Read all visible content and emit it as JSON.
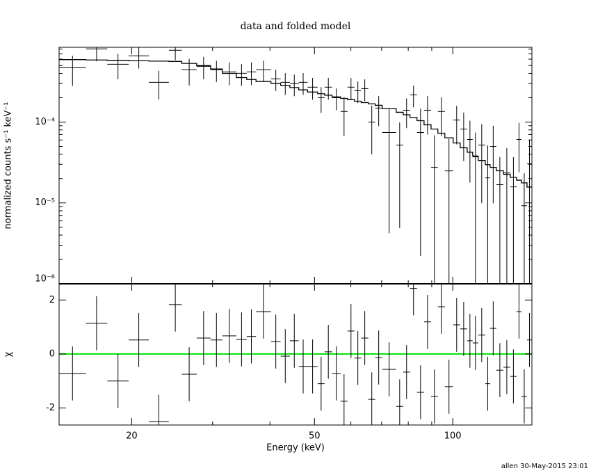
{
  "chart_data": {
    "type": "spectrum",
    "title": "data and folded model",
    "xlabel": "Energy (keV)",
    "xscale": "log",
    "xlim": [
      13.9,
      148.7
    ],
    "xticks": [
      20,
      50,
      100
    ],
    "xminorticks": [
      30,
      40,
      60,
      70,
      80,
      90
    ],
    "bins": [
      13.9,
      15.9,
      17.7,
      19.7,
      21.8,
      24.1,
      25.7,
      27.7,
      29.7,
      31.5,
      33.8,
      35.6,
      37.3,
      40.2,
      42.2,
      44.2,
      46.2,
      48.3,
      50.8,
      52.6,
      54.6,
      57.0,
      59.0,
      61.1,
      63.2,
      65.5,
      67.8,
      70.2,
      75.3,
      78.0,
      80.7,
      83.6,
      86.6,
      89.7,
      92.8,
      96.1,
      100.2,
      103.8,
      107.5,
      110.5,
      113.6,
      117.7,
      120.6,
      124.4,
      128.9,
      133.4,
      137.7,
      141.1,
      145.1,
      148.7
    ],
    "footnote": "allen 30-May-2015 23:01",
    "panels": [
      {
        "ylabel": "normalized counts s⁻¹ keV⁻¹",
        "yscale": "log",
        "ylim": [
          1e-06,
          0.00084
        ],
        "yticks": [
          {
            "value": 1e-06,
            "label": "10⁻⁶"
          },
          {
            "value": 1e-05,
            "label": "10⁻⁵"
          },
          {
            "value": 0.0001,
            "label": "10⁻⁴"
          }
        ],
        "yminorticks": [
          2e-06,
          3e-06,
          4e-06,
          5e-06,
          6e-06,
          7e-06,
          8e-06,
          9e-06,
          2e-05,
          3e-05,
          4e-05,
          5e-05,
          6e-05,
          7e-05,
          8e-05,
          9e-05,
          0.0002,
          0.0003,
          0.0004,
          0.0005,
          0.0006,
          0.0007,
          0.0008
        ],
        "series": [
          {
            "style": "cross",
            "color": "#000000",
            "values": [
              0.00047,
              0.000804,
              0.000519,
              0.000659,
              0.00031,
              0.000773,
              0.000443,
              0.000489,
              0.000443,
              0.000417,
              0.000401,
              0.000417,
              0.000443,
              0.000342,
              0.00031,
              0.000298,
              0.00031,
              0.00027,
              0.0002,
              0.00027,
              0.0002,
              0.000135,
              0.00027,
              0.000244,
              0.000259,
              0.0001,
              0.000149,
              7.42e-05,
              5.19e-05,
              0.00014,
              0.000217,
              7.42e-05,
              0.00014,
              2.75e-05,
              0.000135,
              2.49e-05,
              0.000106,
              8.2e-05,
              6.09e-05,
              3.71e-05,
              5.19e-05,
              2.04e-05,
              4.99e-05,
              1.68e-05,
              2.35e-05,
              1.58e-05,
              6.09e-05,
              9.24e-06,
              3.04e-05
            ],
            "errors": [
              0.00019,
              0.00024,
              0.00018,
              0.0002,
              0.00012,
              0.00019,
              0.00016,
              0.00015,
              0.00013,
              0.00013,
              0.00012,
              0.00013,
              0.00013,
              0.0001,
              9.3e-05,
              8.9e-05,
              9.3e-05,
              8.1e-05,
              7e-05,
              8.1e-05,
              6e-05,
              6.8e-05,
              8.1e-05,
              7.3e-05,
              7.8e-05,
              6e-05,
              6e-05,
              7e-05,
              4.7e-05,
              5.6e-05,
              6.5e-05,
              7.2e-05,
              7e-05,
              4.1e-05,
              6.8e-05,
              3.7e-05,
              5.3e-05,
              4.9e-05,
              4.3e-05,
              3.7e-05,
              4.2e-05,
              3.1e-05,
              4e-05,
              2e-05,
              2.4e-05,
              2.1e-05,
              3.7e-05,
              1.4e-05,
              3e-05
            ]
          },
          {
            "style": "step",
            "color": "#000000",
            "values": [
              0.000592,
              0.000585,
              0.000579,
              0.000572,
              0.000567,
              0.000562,
              0.000531,
              0.000499,
              0.000453,
              0.0004,
              0.000355,
              0.000336,
              0.000318,
              0.000301,
              0.000284,
              0.000267,
              0.00025,
              0.000235,
              0.000224,
              0.000215,
              0.000205,
              0.000196,
              0.000189,
              0.000181,
              0.000174,
              0.000168,
              0.000161,
              0.000147,
              0.000132,
              0.000123,
              0.000114,
              0.000104,
              9.24e-05,
              8.2e-05,
              7.28e-05,
              6.38e-05,
              5.52e-05,
              4.81e-05,
              4.24e-05,
              3.8e-05,
              3.35e-05,
              2.97e-05,
              2.75e-05,
              2.5e-05,
              2.26e-05,
              2.07e-05,
              1.91e-05,
              1.77e-05,
              1.57e-05
            ]
          }
        ]
      },
      {
        "ylabel": "χ",
        "yscale": "linear",
        "ylim": [
          -2.63,
          2.6
        ],
        "yticks": [
          -2,
          0,
          2
        ],
        "hline": 0,
        "hline_color": "#00e000",
        "series": [
          {
            "style": "cross",
            "color": "#000000",
            "values": [
              -0.72,
              1.14,
              -1.0,
              0.52,
              -2.5,
              1.83,
              -0.75,
              0.59,
              0.52,
              0.67,
              0.54,
              0.65,
              1.57,
              0.46,
              -0.08,
              0.49,
              -0.46,
              -0.46,
              -1.1,
              0.08,
              -0.72,
              -1.75,
              0.85,
              -0.15,
              0.59,
              -1.68,
              -0.13,
              -0.57,
              -1.94,
              -0.67,
              2.43,
              -1.42,
              1.19,
              -1.57,
              1.75,
              -1.21,
              1.08,
              0.93,
              0.49,
              0.41,
              0.7,
              -1.1,
              0.95,
              -0.6,
              -0.49,
              -0.83,
              1.57,
              -1.57,
              0.52
            ],
            "errors": [
              1,
              1,
              1,
              1,
              1,
              1,
              1,
              1,
              1,
              1,
              1,
              1,
              1,
              1,
              1,
              1,
              1,
              1,
              1,
              1,
              1,
              1,
              1,
              1,
              1,
              1,
              1,
              1,
              1,
              1,
              1,
              1,
              1,
              1,
              1,
              1,
              1,
              1,
              1,
              1,
              1,
              1,
              1,
              1,
              1,
              1,
              1,
              1,
              1
            ]
          }
        ]
      }
    ]
  }
}
